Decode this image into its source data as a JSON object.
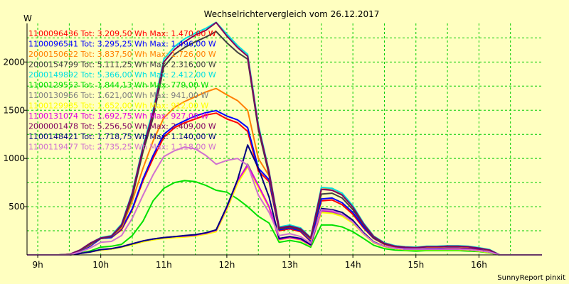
{
  "chart_data": {
    "type": "line",
    "title": "Wechselrichtervergleich vom 26.12.2017",
    "ylabel": "W",
    "footer": "SunnyReport pinxit",
    "x_ticks": [
      "9h",
      "10h",
      "11h",
      "12h",
      "13h",
      "14h",
      "15h",
      "16h"
    ],
    "x_range_hours": [
      8.83,
      17.0
    ],
    "y_ticks": [
      500,
      1000,
      1500,
      2000
    ],
    "ylim": [
      0,
      2400
    ],
    "grid": true,
    "legend_position": "top-left",
    "x": [
      8.83,
      9.17,
      9.33,
      9.5,
      9.67,
      9.83,
      10.0,
      10.17,
      10.33,
      10.5,
      10.67,
      10.83,
      11.0,
      11.17,
      11.33,
      11.5,
      11.67,
      11.83,
      12.0,
      12.17,
      12.33,
      12.5,
      12.67,
      12.83,
      13.0,
      13.17,
      13.33,
      13.5,
      13.67,
      13.83,
      14.0,
      14.17,
      14.33,
      14.5,
      14.67,
      14.83,
      15.0,
      15.17,
      15.33,
      15.5,
      15.67,
      15.83,
      16.0,
      16.17,
      16.33,
      16.5,
      16.67,
      16.83,
      17.0
    ],
    "series": [
      {
        "name": "1100096436 Tot: 3.209,50 Wh Max: 1.470,00 W",
        "color": "#ff0000",
        "values": [
          0,
          0,
          0,
          5,
          40,
          90,
          170,
          180,
          260,
          470,
          770,
          1000,
          1220,
          1320,
          1370,
          1410,
          1450,
          1470,
          1410,
          1370,
          1280,
          870,
          760,
          250,
          270,
          240,
          140,
          560,
          570,
          520,
          420,
          280,
          170,
          110,
          85,
          70,
          65,
          70,
          70,
          75,
          75,
          70,
          60,
          40,
          0,
          0,
          0,
          0,
          0
        ]
      },
      {
        "name": "1100096541 Tot: 3.295,25 Wh Max: 1.496,00 W",
        "color": "#0000ff",
        "values": [
          0,
          0,
          0,
          5,
          40,
          90,
          170,
          180,
          270,
          480,
          790,
          1030,
          1250,
          1340,
          1390,
          1440,
          1475,
          1496,
          1440,
          1400,
          1320,
          900,
          780,
          260,
          280,
          250,
          145,
          580,
          590,
          540,
          440,
          290,
          175,
          115,
          90,
          75,
          70,
          75,
          75,
          80,
          80,
          75,
          65,
          45,
          0,
          0,
          0,
          0,
          0
        ]
      },
      {
        "name": "2000150622 Tot: 3.837,50 Wh Max: 1.726,00 W",
        "color": "#ff8000",
        "values": [
          0,
          0,
          0,
          5,
          45,
          100,
          180,
          190,
          280,
          560,
          900,
          1180,
          1420,
          1530,
          1590,
          1640,
          1690,
          1726,
          1660,
          1600,
          1500,
          1000,
          820,
          270,
          290,
          260,
          160,
          680,
          690,
          630,
          500,
          330,
          195,
          125,
          95,
          80,
          75,
          80,
          80,
          85,
          85,
          80,
          70,
          45,
          0,
          0,
          0,
          0,
          0
        ]
      },
      {
        "name": "2000154799 Tot: 5.111,25 Wh Max: 2.316,00 W",
        "color": "#404040",
        "values": [
          0,
          0,
          0,
          5,
          45,
          110,
          170,
          190,
          300,
          600,
          1070,
          1420,
          1950,
          2080,
          2150,
          2210,
          2260,
          2316,
          2200,
          2100,
          2030,
          1300,
          830,
          270,
          290,
          260,
          170,
          630,
          640,
          590,
          470,
          310,
          180,
          115,
          90,
          80,
          75,
          85,
          85,
          90,
          90,
          85,
          70,
          50,
          0,
          0,
          0,
          0,
          0
        ]
      },
      {
        "name": "2000149892 Tot: 5.366,00 Wh Max: 2.412,00 W",
        "color": "#00e0e0",
        "values": [
          0,
          0,
          0,
          5,
          50,
          120,
          180,
          200,
          320,
          650,
          1130,
          1500,
          2030,
          2160,
          2240,
          2300,
          2350,
          2412,
          2290,
          2170,
          2080,
          1350,
          870,
          290,
          310,
          280,
          180,
          700,
          690,
          640,
          510,
          330,
          195,
          125,
          95,
          85,
          80,
          90,
          90,
          95,
          95,
          90,
          75,
          55,
          0,
          0,
          0,
          0,
          0
        ]
      },
      {
        "name": "1100129553 Tot: 1.844,13 Wh Max: 779,00 W",
        "color": "#00e000",
        "values": [
          0,
          0,
          0,
          0,
          20,
          40,
          80,
          90,
          110,
          200,
          350,
          560,
          690,
          750,
          770,
          760,
          720,
          670,
          650,
          580,
          500,
          400,
          330,
          130,
          150,
          130,
          80,
          310,
          310,
          290,
          240,
          170,
          100,
          65,
          50,
          45,
          40,
          45,
          45,
          45,
          45,
          40,
          35,
          20,
          0,
          0,
          0,
          0,
          0
        ]
      },
      {
        "name": "1100130966 Tot: 1.621,00 Wh Max: 941,00 W",
        "color": "#808080",
        "values": [
          0,
          0,
          0,
          0,
          15,
          30,
          50,
          60,
          80,
          110,
          140,
          160,
          175,
          185,
          190,
          200,
          220,
          250,
          480,
          760,
          941,
          720,
          500,
          160,
          180,
          160,
          100,
          450,
          440,
          410,
          340,
          220,
          130,
          90,
          70,
          60,
          60,
          60,
          60,
          60,
          60,
          55,
          45,
          30,
          0,
          0,
          0,
          0,
          0
        ]
      },
      {
        "name": "1100129985 Tot: 1.652,00 Wh Max: 912,00 W",
        "color": "#ffff00",
        "values": [
          0,
          0,
          0,
          0,
          15,
          30,
          50,
          60,
          80,
          105,
          135,
          155,
          170,
          180,
          185,
          195,
          215,
          240,
          470,
          740,
          912,
          700,
          490,
          155,
          175,
          155,
          95,
          440,
          430,
          400,
          330,
          215,
          125,
          85,
          65,
          55,
          55,
          55,
          55,
          55,
          55,
          50,
          40,
          25,
          0,
          0,
          0,
          0,
          0
        ]
      },
      {
        "name": "1100131074 Tot: 1.692,75 Wh Max: 927,00 W",
        "color": "#e000e0",
        "values": [
          0,
          0,
          0,
          0,
          15,
          30,
          55,
          65,
          85,
          115,
          145,
          165,
          180,
          190,
          195,
          205,
          225,
          255,
          490,
          770,
          927,
          720,
          500,
          160,
          180,
          160,
          100,
          460,
          450,
          420,
          350,
          225,
          130,
          90,
          70,
          60,
          60,
          60,
          60,
          60,
          60,
          55,
          45,
          30,
          0,
          0,
          0,
          0,
          0
        ]
      },
      {
        "name": "2000001478 Tot: 5.256,50 Wh Max: 2.409,00 W",
        "color": "#800060",
        "values": [
          0,
          0,
          0,
          5,
          50,
          120,
          175,
          195,
          310,
          640,
          1110,
          1470,
          2000,
          2130,
          2210,
          2280,
          2330,
          2409,
          2270,
          2150,
          2060,
          1330,
          860,
          280,
          300,
          270,
          175,
          680,
          670,
          620,
          495,
          320,
          190,
          120,
          90,
          80,
          75,
          85,
          85,
          90,
          90,
          85,
          70,
          50,
          0,
          0,
          0,
          0,
          0
        ]
      },
      {
        "name": "1100148421 Tot: 1.718,75 Wh Max: 1.140,00 W",
        "color": "#000080",
        "values": [
          0,
          0,
          0,
          0,
          15,
          30,
          55,
          65,
          85,
          115,
          145,
          165,
          180,
          190,
          200,
          210,
          230,
          260,
          500,
          780,
          1140,
          900,
          600,
          170,
          190,
          170,
          105,
          480,
          470,
          440,
          360,
          230,
          135,
          90,
          70,
          60,
          60,
          60,
          60,
          60,
          60,
          55,
          45,
          30,
          0,
          0,
          0,
          0,
          0
        ]
      },
      {
        "name": "1100119477 Tot: 2.735,25 Wh Max: 1.118,00 W",
        "color": "#d070d0",
        "values": [
          0,
          0,
          0,
          0,
          30,
          70,
          130,
          140,
          200,
          380,
          620,
          830,
          1020,
          1080,
          1118,
          1100,
          1030,
          940,
          980,
          1000,
          930,
          620,
          440,
          200,
          220,
          190,
          120,
          470,
          460,
          420,
          340,
          220,
          130,
          90,
          70,
          60,
          60,
          60,
          60,
          60,
          60,
          55,
          45,
          30,
          0,
          0,
          0,
          0,
          0
        ]
      }
    ]
  }
}
